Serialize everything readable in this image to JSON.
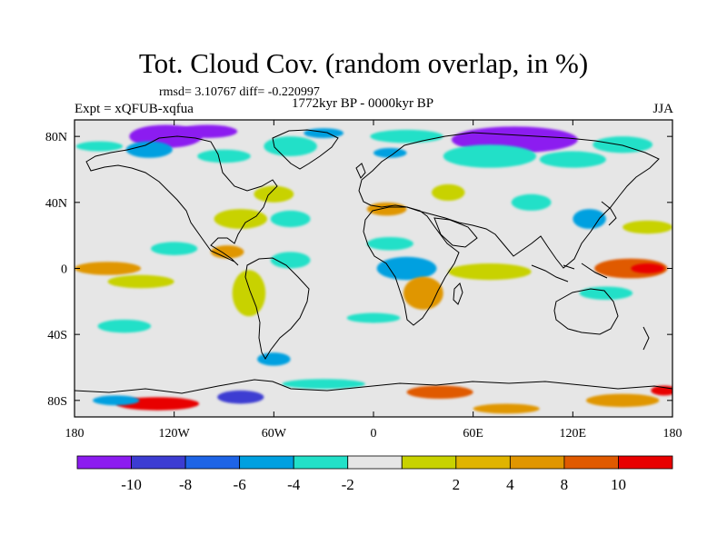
{
  "figure": {
    "title": "Tot. Cloud Cov. (random overlap, in %)",
    "stats": "rmsd= 3.10767 diff= -0.220997",
    "experiment": "Expt = xQFUB-xqfua",
    "period": "1772kyr BP - 0000kyr BP",
    "season": "JJA"
  },
  "map": {
    "lon_range": [
      -180,
      180
    ],
    "lat_range": [
      -90,
      90
    ],
    "background_color": "#e6e6e6",
    "lon_ticks": [
      {
        "value": -180,
        "label": "180"
      },
      {
        "value": -120,
        "label": "120W"
      },
      {
        "value": -60,
        "label": "60W"
      },
      {
        "value": 0,
        "label": "0"
      },
      {
        "value": 60,
        "label": "60E"
      },
      {
        "value": 120,
        "label": "120E"
      },
      {
        "value": 180,
        "label": "180"
      }
    ],
    "lat_ticks": [
      {
        "value": 80,
        "label": "80N"
      },
      {
        "value": 40,
        "label": "40N"
      },
      {
        "value": 0,
        "label": "0"
      },
      {
        "value": -40,
        "label": "40S"
      },
      {
        "value": -80,
        "label": "80S"
      }
    ],
    "anomaly_patches": [
      {
        "lon": -125,
        "lat": 80,
        "rx": 22,
        "ry": 7,
        "color": "#8c1cf0"
      },
      {
        "lon": -100,
        "lat": 83,
        "rx": 18,
        "ry": 4,
        "color": "#8c1cf0"
      },
      {
        "lon": -135,
        "lat": 72,
        "rx": 14,
        "ry": 5,
        "color": "#00a0e0"
      },
      {
        "lon": -165,
        "lat": 74,
        "rx": 14,
        "ry": 3,
        "color": "#22e0c8"
      },
      {
        "lon": -90,
        "lat": 68,
        "rx": 16,
        "ry": 4,
        "color": "#22e0c8"
      },
      {
        "lon": -50,
        "lat": 74,
        "rx": 16,
        "ry": 6,
        "color": "#22e0c8"
      },
      {
        "lon": -30,
        "lat": 82,
        "rx": 12,
        "ry": 3,
        "color": "#00a0e0"
      },
      {
        "lon": 20,
        "lat": 80,
        "rx": 22,
        "ry": 4,
        "color": "#22e0c8"
      },
      {
        "lon": 10,
        "lat": 70,
        "rx": 10,
        "ry": 3,
        "color": "#00a0e0"
      },
      {
        "lon": 85,
        "lat": 78,
        "rx": 38,
        "ry": 8,
        "color": "#8c1cf0"
      },
      {
        "lon": 70,
        "lat": 68,
        "rx": 28,
        "ry": 7,
        "color": "#22e0c8"
      },
      {
        "lon": 120,
        "lat": 66,
        "rx": 20,
        "ry": 5,
        "color": "#22e0c8"
      },
      {
        "lon": 150,
        "lat": 75,
        "rx": 18,
        "ry": 5,
        "color": "#22e0c8"
      },
      {
        "lon": -60,
        "lat": 45,
        "rx": 12,
        "ry": 5,
        "color": "#c8d200"
      },
      {
        "lon": -80,
        "lat": 30,
        "rx": 16,
        "ry": 6,
        "color": "#c8d200"
      },
      {
        "lon": -88,
        "lat": 10,
        "rx": 10,
        "ry": 4,
        "color": "#e09600"
      },
      {
        "lon": -50,
        "lat": 30,
        "rx": 12,
        "ry": 5,
        "color": "#22e0c8"
      },
      {
        "lon": 8,
        "lat": 36,
        "rx": 12,
        "ry": 4,
        "color": "#e09600"
      },
      {
        "lon": 45,
        "lat": 46,
        "rx": 10,
        "ry": 5,
        "color": "#c8d200"
      },
      {
        "lon": 95,
        "lat": 40,
        "rx": 12,
        "ry": 5,
        "color": "#22e0c8"
      },
      {
        "lon": 130,
        "lat": 30,
        "rx": 10,
        "ry": 6,
        "color": "#00a0e0"
      },
      {
        "lon": 165,
        "lat": 25,
        "rx": 15,
        "ry": 4,
        "color": "#c8d200"
      },
      {
        "lon": -160,
        "lat": 0,
        "rx": 20,
        "ry": 4,
        "color": "#e09600"
      },
      {
        "lon": -140,
        "lat": -8,
        "rx": 20,
        "ry": 4,
        "color": "#c8d200"
      },
      {
        "lon": -120,
        "lat": 12,
        "rx": 14,
        "ry": 4,
        "color": "#22e0c8"
      },
      {
        "lon": -75,
        "lat": -15,
        "rx": 10,
        "ry": 14,
        "color": "#c8d200"
      },
      {
        "lon": -50,
        "lat": 5,
        "rx": 12,
        "ry": 5,
        "color": "#22e0c8"
      },
      {
        "lon": 20,
        "lat": 0,
        "rx": 18,
        "ry": 7,
        "color": "#00a0e0"
      },
      {
        "lon": 10,
        "lat": 15,
        "rx": 14,
        "ry": 4,
        "color": "#22e0c8"
      },
      {
        "lon": 30,
        "lat": -15,
        "rx": 12,
        "ry": 10,
        "color": "#e09600"
      },
      {
        "lon": 70,
        "lat": -2,
        "rx": 25,
        "ry": 5,
        "color": "#c8d200"
      },
      {
        "lon": 155,
        "lat": 0,
        "rx": 22,
        "ry": 6,
        "color": "#e05a00"
      },
      {
        "lon": 165,
        "lat": 0,
        "rx": 10,
        "ry": 3,
        "color": "#e80000"
      },
      {
        "lon": 140,
        "lat": -15,
        "rx": 16,
        "ry": 4,
        "color": "#22e0c8"
      },
      {
        "lon": -150,
        "lat": -35,
        "rx": 16,
        "ry": 4,
        "color": "#22e0c8"
      },
      {
        "lon": 0,
        "lat": -30,
        "rx": 16,
        "ry": 3,
        "color": "#22e0c8"
      },
      {
        "lon": -60,
        "lat": -55,
        "rx": 10,
        "ry": 4,
        "color": "#00a0e0"
      },
      {
        "lon": -130,
        "lat": -82,
        "rx": 25,
        "ry": 4,
        "color": "#e80000"
      },
      {
        "lon": -155,
        "lat": -80,
        "rx": 14,
        "ry": 3,
        "color": "#00a0e0"
      },
      {
        "lon": -80,
        "lat": -78,
        "rx": 14,
        "ry": 4,
        "color": "#3c3cd2"
      },
      {
        "lon": -30,
        "lat": -70,
        "rx": 25,
        "ry": 3,
        "color": "#22e0c8"
      },
      {
        "lon": 40,
        "lat": -75,
        "rx": 20,
        "ry": 4,
        "color": "#e05a00"
      },
      {
        "lon": 80,
        "lat": -85,
        "rx": 20,
        "ry": 3,
        "color": "#e09600"
      },
      {
        "lon": 150,
        "lat": -80,
        "rx": 22,
        "ry": 4,
        "color": "#e09600"
      },
      {
        "lon": 175,
        "lat": -74,
        "rx": 8,
        "ry": 3,
        "color": "#e80000"
      }
    ]
  },
  "colorbar": {
    "colors": [
      "#8c1cf0",
      "#3c3cd2",
      "#1e64e6",
      "#00a0e0",
      "#22e0c8",
      "#e6e6e6",
      "#c8d200",
      "#e0b400",
      "#e09600",
      "#e05a00",
      "#e80000"
    ],
    "labels": [
      "-10",
      "-8",
      "-6",
      "-4",
      "-2",
      "2",
      "4",
      "8",
      "10"
    ]
  }
}
